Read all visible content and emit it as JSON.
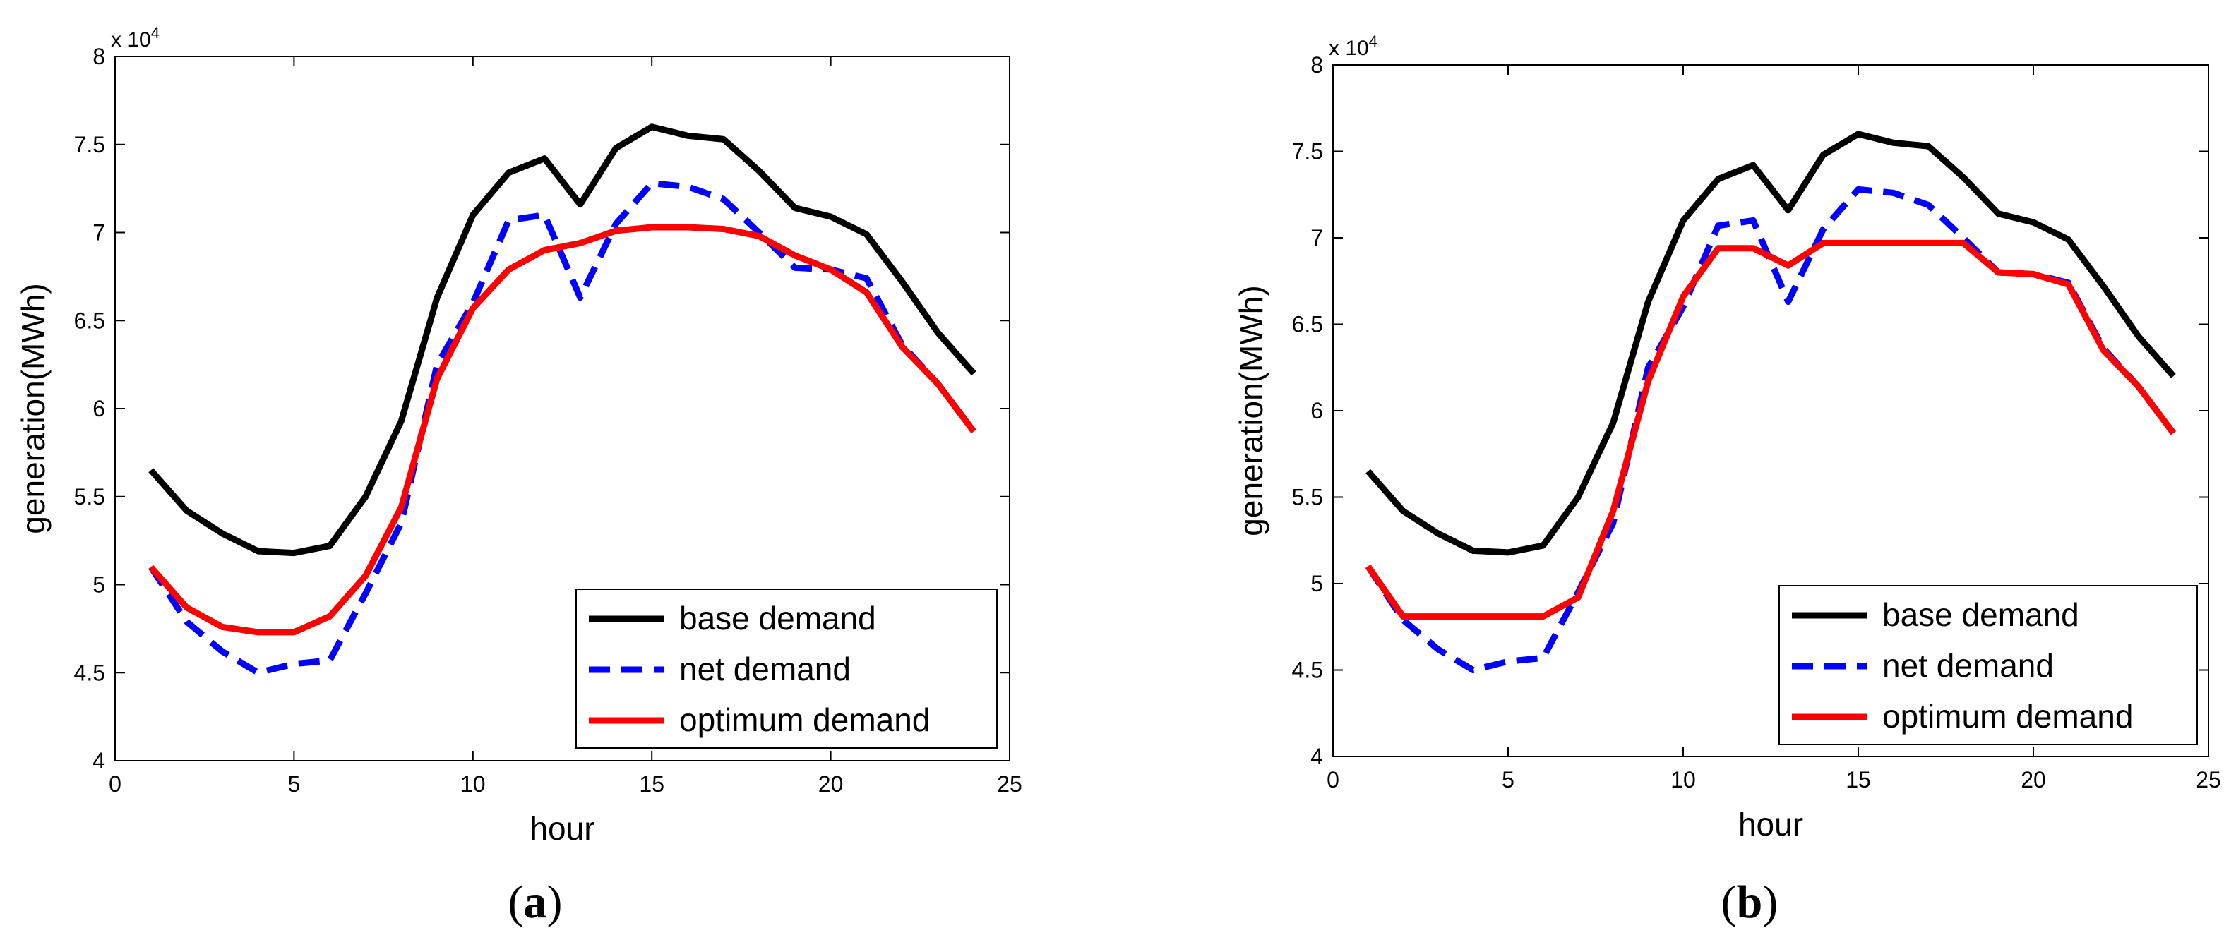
{
  "chart_data": [
    {
      "type": "line",
      "panel_label": "a",
      "title": "",
      "xlabel": "hour",
      "ylabel": "generation(MWh)",
      "y_multiplier": "x 10",
      "y_multiplier_exponent": "4",
      "xlim": [
        0,
        25
      ],
      "ylim": [
        4,
        8
      ],
      "x_ticks": [
        0,
        5,
        10,
        15,
        20,
        25
      ],
      "y_ticks": [
        4,
        4.5,
        5,
        5.5,
        6,
        6.5,
        7,
        7.5,
        8
      ],
      "x_tick_labels": [
        "0",
        "5",
        "10",
        "15",
        "20",
        "25"
      ],
      "y_tick_labels": [
        "4",
        "4.5",
        "5",
        "5.5",
        "6",
        "6.5",
        "7",
        "7.5",
        "8"
      ],
      "grid": false,
      "legend_position": "bottom-right",
      "x": [
        1,
        2,
        3,
        4,
        5,
        6,
        7,
        8,
        9,
        10,
        11,
        12,
        13,
        14,
        15,
        16,
        17,
        18,
        19,
        20,
        21,
        22,
        23,
        24
      ],
      "series": [
        {
          "name": "base demand",
          "color": "#000000",
          "style": "solid",
          "values": [
            5.65,
            5.42,
            5.29,
            5.19,
            5.18,
            5.22,
            5.5,
            5.93,
            6.63,
            7.1,
            7.34,
            7.42,
            7.16,
            7.48,
            7.6,
            7.55,
            7.53,
            7.35,
            7.14,
            7.09,
            6.99,
            6.72,
            6.43,
            6.2
          ]
        },
        {
          "name": "net demand",
          "color": "#0000ff",
          "style": "dashed",
          "values": [
            5.1,
            4.79,
            4.62,
            4.5,
            4.55,
            4.57,
            4.95,
            5.35,
            6.25,
            6.6,
            7.07,
            7.1,
            6.63,
            7.05,
            7.28,
            7.26,
            7.19,
            7.0,
            6.8,
            6.79,
            6.74,
            6.36,
            6.14,
            5.87
          ]
        },
        {
          "name": "optimum demand",
          "color": "#ff0000",
          "style": "solid",
          "values": [
            5.1,
            4.87,
            4.76,
            4.73,
            4.73,
            4.82,
            5.05,
            5.44,
            6.17,
            6.57,
            6.79,
            6.9,
            6.94,
            7.01,
            7.03,
            7.03,
            7.02,
            6.98,
            6.87,
            6.79,
            6.66,
            6.35,
            6.14,
            5.87
          ]
        }
      ]
    },
    {
      "type": "line",
      "panel_label": "b",
      "title": "",
      "xlabel": "hour",
      "ylabel": "generation(MWh)",
      "y_multiplier": "x 10",
      "y_multiplier_exponent": "4",
      "xlim": [
        0,
        25
      ],
      "ylim": [
        4,
        8
      ],
      "x_ticks": [
        0,
        5,
        10,
        15,
        20,
        25
      ],
      "y_ticks": [
        4,
        4.5,
        5,
        5.5,
        6,
        6.5,
        7,
        7.5,
        8
      ],
      "x_tick_labels": [
        "0",
        "5",
        "10",
        "15",
        "20",
        "25"
      ],
      "y_tick_labels": [
        "4",
        "4.5",
        "5",
        "5.5",
        "6",
        "6.5",
        "7",
        "7.5",
        "8"
      ],
      "grid": false,
      "legend_position": "bottom-right",
      "x": [
        1,
        2,
        3,
        4,
        5,
        6,
        7,
        8,
        9,
        10,
        11,
        12,
        13,
        14,
        15,
        16,
        17,
        18,
        19,
        20,
        21,
        22,
        23,
        24
      ],
      "series": [
        {
          "name": "base demand",
          "color": "#000000",
          "style": "solid",
          "values": [
            5.65,
            5.42,
            5.29,
            5.19,
            5.18,
            5.22,
            5.5,
            5.93,
            6.63,
            7.1,
            7.34,
            7.42,
            7.16,
            7.48,
            7.6,
            7.55,
            7.53,
            7.35,
            7.14,
            7.09,
            6.99,
            6.72,
            6.43,
            6.2
          ]
        },
        {
          "name": "net demand",
          "color": "#0000ff",
          "style": "dashed",
          "values": [
            5.1,
            4.79,
            4.62,
            4.5,
            4.55,
            4.57,
            4.95,
            5.35,
            6.25,
            6.6,
            7.07,
            7.1,
            6.63,
            7.05,
            7.28,
            7.26,
            7.19,
            7.0,
            6.8,
            6.79,
            6.74,
            6.36,
            6.14,
            5.87
          ]
        },
        {
          "name": "optimum demand",
          "color": "#ff0000",
          "style": "solid",
          "values": [
            5.1,
            4.81,
            4.81,
            4.81,
            4.81,
            4.81,
            4.92,
            5.42,
            6.17,
            6.66,
            6.94,
            6.94,
            6.84,
            6.97,
            6.97,
            6.97,
            6.97,
            6.97,
            6.8,
            6.79,
            6.73,
            6.35,
            6.14,
            5.87
          ]
        }
      ]
    }
  ]
}
